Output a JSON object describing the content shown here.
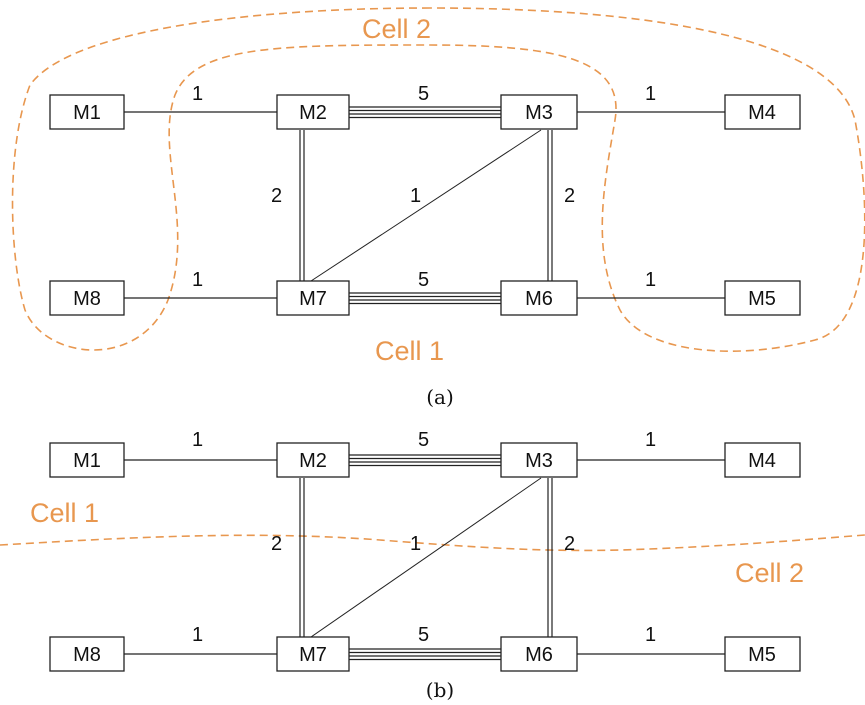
{
  "colors": {
    "cell": "#E8974F",
    "ink": "#222222"
  },
  "panels": [
    {
      "id": "a",
      "caption": "(a)",
      "machines": [
        "M1",
        "M2",
        "M3",
        "M4",
        "M5",
        "M6",
        "M7",
        "M8"
      ],
      "edges": [
        {
          "from": "M1",
          "to": "M2",
          "weight": "1"
        },
        {
          "from": "M2",
          "to": "M3",
          "weight": "5"
        },
        {
          "from": "M3",
          "to": "M4",
          "weight": "1"
        },
        {
          "from": "M2",
          "to": "M7",
          "weight": "2"
        },
        {
          "from": "M3",
          "to": "M6",
          "weight": "2"
        },
        {
          "from": "M3",
          "to": "M7",
          "weight": "1"
        },
        {
          "from": "M8",
          "to": "M7",
          "weight": "1"
        },
        {
          "from": "M7",
          "to": "M6",
          "weight": "5"
        },
        {
          "from": "M6",
          "to": "M5",
          "weight": "1"
        }
      ],
      "cells": [
        {
          "label": "Cell 1"
        },
        {
          "label": "Cell 2"
        }
      ]
    },
    {
      "id": "b",
      "caption": "(b)",
      "machines": [
        "M1",
        "M2",
        "M3",
        "M4",
        "M5",
        "M6",
        "M7",
        "M8"
      ],
      "edges": [
        {
          "from": "M1",
          "to": "M2",
          "weight": "1"
        },
        {
          "from": "M2",
          "to": "M3",
          "weight": "5"
        },
        {
          "from": "M3",
          "to": "M4",
          "weight": "1"
        },
        {
          "from": "M2",
          "to": "M7",
          "weight": "2"
        },
        {
          "from": "M3",
          "to": "M6",
          "weight": "2"
        },
        {
          "from": "M3",
          "to": "M7",
          "weight": "1"
        },
        {
          "from": "M8",
          "to": "M7",
          "weight": "1"
        },
        {
          "from": "M7",
          "to": "M6",
          "weight": "5"
        },
        {
          "from": "M6",
          "to": "M5",
          "weight": "1"
        }
      ],
      "cells": [
        {
          "label": "Cell 1"
        },
        {
          "label": "Cell 2"
        }
      ]
    }
  ]
}
